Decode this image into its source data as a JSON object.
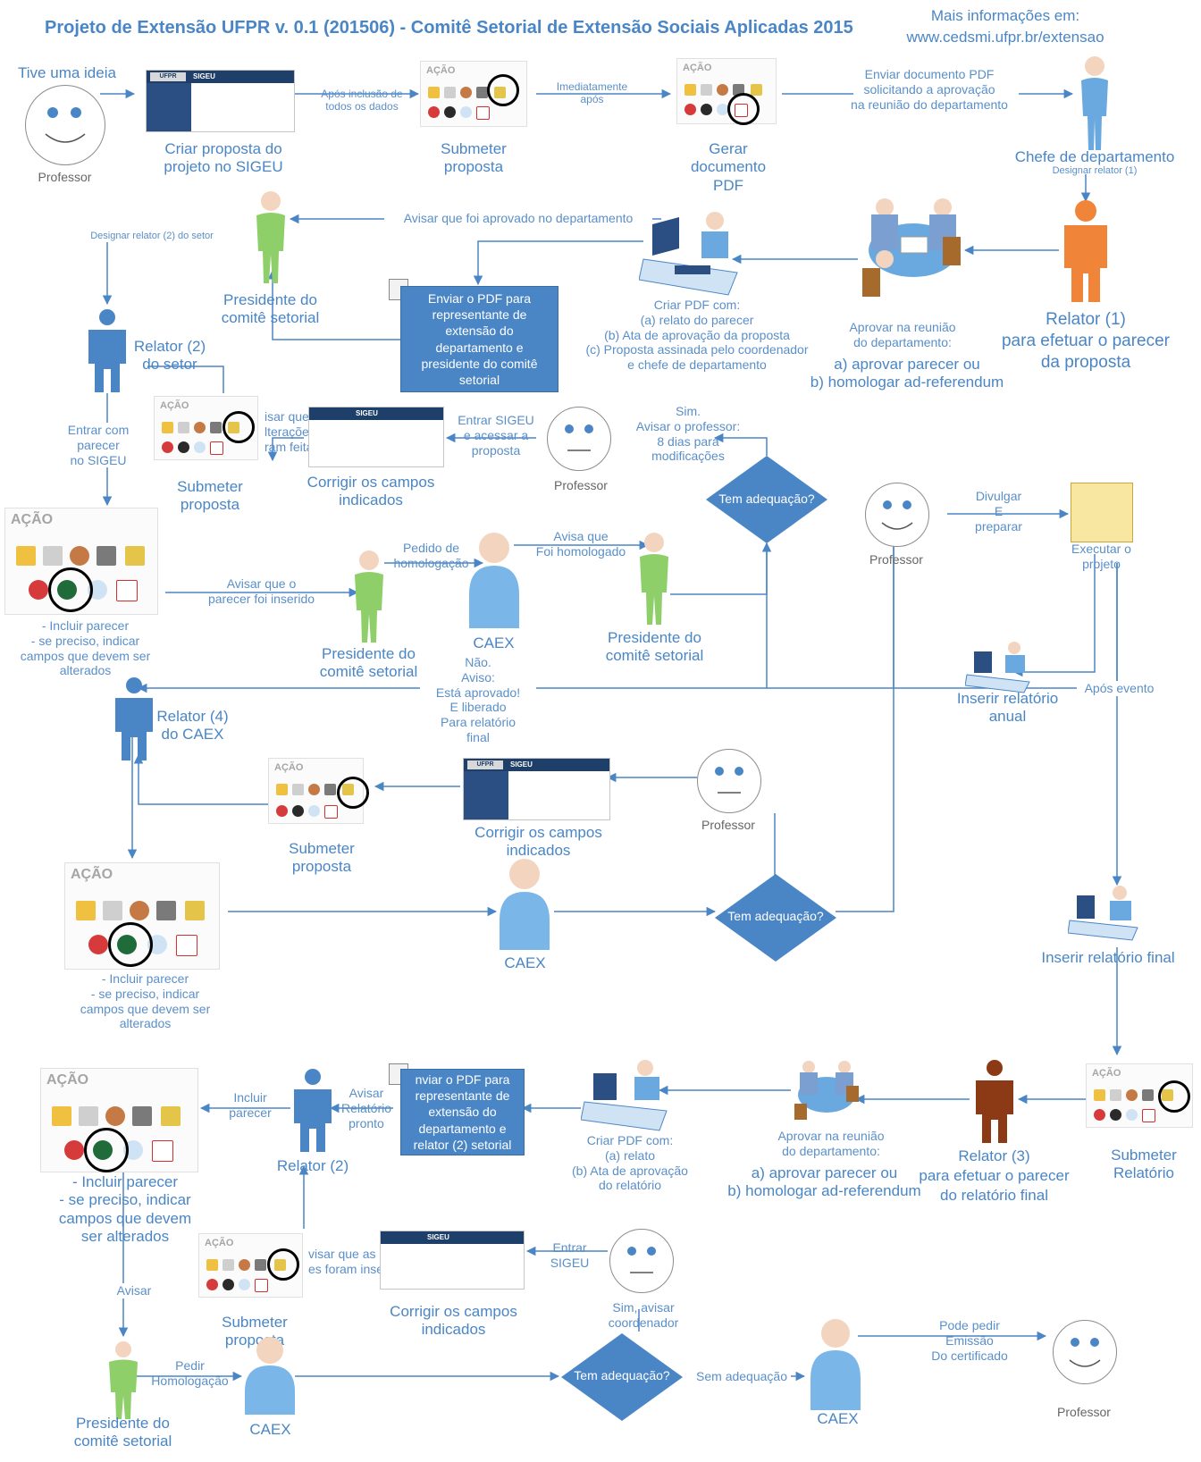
{
  "header": {
    "title": "Projeto de Extensão UFPR v. 0.1 (201506) - Comitê Setorial de Extensão Sociais Aplicadas 2015",
    "info_line1": "Mais informações em:",
    "info_line2": "www.cedsmi.ufpr.br/extensao"
  },
  "common": {
    "acao": "AÇÃO",
    "sigeu": "SIGEU",
    "ufpr": "UFPR",
    "sigeu_sub": "Sistema Integrado de Gestão de Extensão Universitária",
    "professor": "Professor",
    "caex": "CAEX",
    "tem_adequacao": "Tem adequação?",
    "presidente": "Presidente do\ncomitê setorial",
    "submeter_proposta": "Submeter\nproposta",
    "corrigir": "Corrigir os campos\nindicados",
    "incluir_parecer": "- Incluir parecer\n- se preciso, indicar\ncampos que devem ser\nalterados"
  },
  "labels": {
    "tive_ideia": "Tive uma ideia",
    "criar_proposta": "Criar proposta do\nprojeto no SIGEU",
    "apos_inclusao": "Após inclusão de\ntodos os dados",
    "imediatamente": "Imediatamente\napós",
    "gerar_pdf": "Gerar\ndocumento\nPDF",
    "enviar_doc": "Enviar documento PDF\nsolicitando a aprovação\nna reunião do departamento",
    "chefe": "Chefe de departamento",
    "designar1": "Designar relator (1)",
    "relator1": "Relator (1)\npara efetuar o parecer\nda proposta",
    "aprovar_reuniao": "Aprovar na reunião\ndo departamento:",
    "aprovar_ab": "a) aprovar parecer ou\nb) homologar ad-referendum",
    "criar_pdf1": "Criar PDF com:\n(a) relato do parecer\n(b) Ata de aprovação da proposta\n(c) Proposta assinada pelo coordenador\ne chefe de departamento",
    "avisar_aprovado_dep": "Avisar que foi aprovado no departamento",
    "enviar_pdf1": "Enviar o PDF para\nrepresentante de\nextensão do\ndepartamento e\npresidente do comitê\nsetorial",
    "designar2": "Designar relator (2) do setor",
    "relator2_setor": "Relator (2)\ndo setor",
    "entrar_parecer": "Entrar com\nparecer\nno SIGEU",
    "avisar_iteracoes": "isar que as\nlterações\nram feitas",
    "entrar_sigeu": "Entrar SIGEU\ne acessar a\nproposta",
    "sim_avisar": "Sim.\nAvisar o professor:\n8 dias para\nmodificações",
    "avisar_parecer": "Avisar que o\nparecer foi inserido",
    "pedido_homol": "Pedido de\nhomologação",
    "avisa_homol": "Avisa que\nFoi homologado",
    "nao_aviso": "Não.\nAviso:\nEstá aprovado!\nE liberado\nPara relatório\nfinal",
    "relator4": "Relator (4)\ndo CAEX",
    "divulgar": "Divulgar\nE\npreparar",
    "executar": "Executar o\nprojeto",
    "inserir_anual": "Inserir relatório\nanual",
    "apos_evento": "Após evento",
    "inserir_final": "Inserir relatório final",
    "submeter_relatorio": "Submeter\nRelatório",
    "relator3": "Relator (3)\npara efetuar o parecer\ndo relatório final",
    "aprovar_reuniao2": "Aprovar na reunião\ndo departamento:",
    "criar_pdf2": "Criar PDF com:\n(a) relato\n(b) Ata de aprovação\ndo relatório",
    "enviar_pdf2": "nviar o PDF para\nrepresentante de\nextensão do\ndepartamento e\nrelator (2) setorial",
    "avisar_relatorio": "Avisar\nRelatório\npronto",
    "relator2": "Relator (2)",
    "incluir_parecer_short": "Incluir\nparecer",
    "incluir_parecer_big": "- Incluir parecer\n- se preciso, indicar\ncampos que devem\nser alterados",
    "avisar": "Avisar",
    "avisar_inseridas": "visar que as\nes foram inseridas",
    "entrar_sigeu2": "Entrar\nSIGEU",
    "sim_coord": "Sim, avisar\ncoordenador",
    "pedir_homol": "Pedir\nHomologação",
    "sem_adequacao": "Sem adequação",
    "pode_pedir": "Pode pedir\nEmissão\nDo certificado"
  }
}
